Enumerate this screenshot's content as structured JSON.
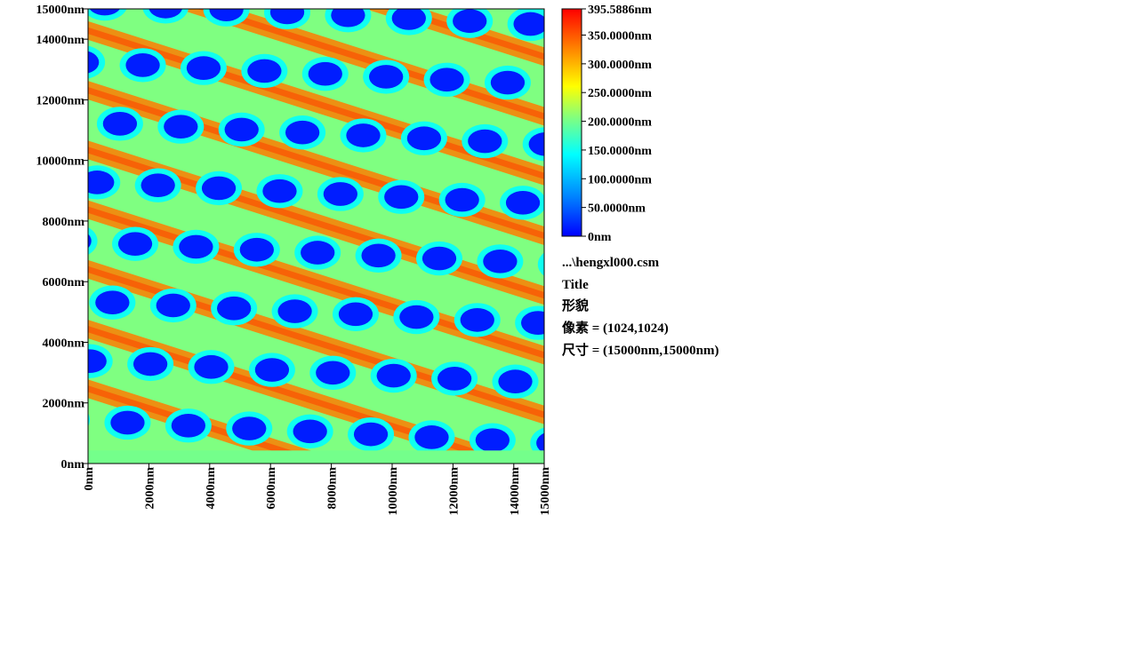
{
  "chart_data": {
    "type": "heatmap",
    "title": "Title",
    "image_kind": "形貌",
    "file_label": "...\\hengxl000.csm",
    "pixels_label": "像素 = (1024,1024)",
    "size_label": "尺寸 = (15000nm,15000nm)",
    "x_range": [
      0,
      15000
    ],
    "y_range": [
      0,
      15000
    ],
    "x_unit": "nm",
    "y_unit": "nm",
    "x_ticks": [
      0,
      2000,
      4000,
      6000,
      8000,
      10000,
      12000,
      14000,
      15000
    ],
    "x_tick_labels": [
      "0nm",
      "2000nm",
      "4000nm",
      "6000nm",
      "8000nm",
      "10000nm",
      "12000nm",
      "14000nm",
      "15000nm"
    ],
    "y_ticks": [
      0,
      2000,
      4000,
      6000,
      8000,
      10000,
      12000,
      14000,
      15000
    ],
    "y_tick_labels": [
      "0nm",
      "2000nm",
      "4000nm",
      "6000nm",
      "8000nm",
      "10000nm",
      "12000nm",
      "14000nm",
      "15000nm"
    ],
    "z_range": [
      0,
      395.5886
    ],
    "z_unit": "nm",
    "colorbar_ticks": [
      0,
      50,
      100,
      150,
      200,
      250,
      300,
      350,
      395.5886
    ],
    "colorbar_tick_labels": [
      "0nm",
      "50.0000nm",
      "100.0000nm",
      "150.0000nm",
      "200.0000nm",
      "250.0000nm",
      "300.0000nm",
      "350.0000nm",
      "395.5886nm"
    ],
    "colormap": [
      "#0000ff",
      "#0080ff",
      "#00ffff",
      "#80ff80",
      "#ffff00",
      "#ff8000",
      "#ff0000"
    ],
    "pattern": {
      "description_values": "periodic height map of pits",
      "row_pitch_nm": 1970,
      "col_pitch_nm": 2000,
      "row_shift_nm": 750,
      "first_row_y_nm": 1050,
      "first_col_x_nm": -700,
      "pit_depth_nm": 15,
      "terrace_height_nm": 205,
      "ridge_height_nm": 330,
      "bottom_band_height_value_nm": 200,
      "bottom_band_top_nm": 430
    }
  }
}
